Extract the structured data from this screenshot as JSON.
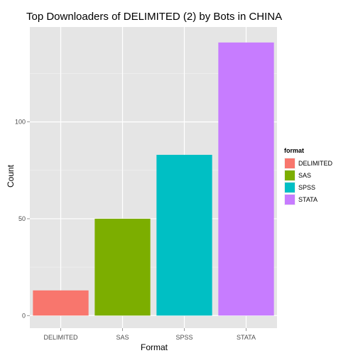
{
  "chart_data": {
    "type": "bar",
    "title": "Top Downloaders of DELIMITED (2) by Bots in CHINA",
    "xlabel": "Format",
    "ylabel": "Count",
    "categories": [
      "DELIMITED",
      "SAS",
      "SPSS",
      "STATA"
    ],
    "values": [
      13,
      50,
      83,
      141
    ],
    "ylim": [
      -6.5,
      149
    ],
    "yticks": [
      0,
      50,
      100
    ],
    "colors": [
      "#F8766D",
      "#7CAE00",
      "#00BFC4",
      "#C77CFF"
    ],
    "grid": true,
    "background": "#E5E5E5",
    "legend": {
      "title": "format",
      "position": "right",
      "items": [
        "DELIMITED",
        "SAS",
        "SPSS",
        "STATA"
      ]
    }
  }
}
